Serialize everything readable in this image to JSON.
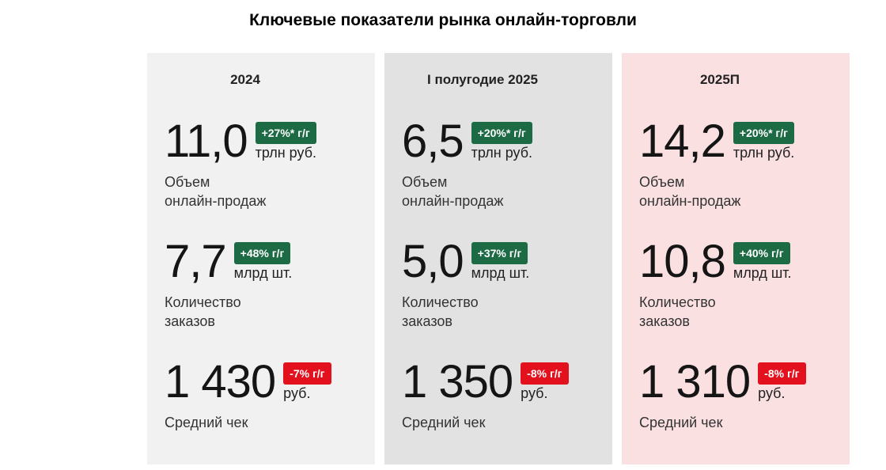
{
  "title": "Ключевые показатели рынка онлайн-торговли",
  "columns": [
    {
      "period": "2024",
      "background": "#f0f1f0",
      "metrics": [
        {
          "value": "11,0",
          "badge": "+27%* г/г",
          "badge_color": "#1d6b45",
          "unit": "трлн руб.",
          "label": "Объем\nонлайн-продаж"
        },
        {
          "value": "7,7",
          "badge": "+48% г/г",
          "badge_color": "#1d6b45",
          "unit": "млрд шт.",
          "label": "Количество\nзаказов"
        },
        {
          "value": "1 430",
          "badge": "-7% г/г",
          "badge_color": "#e3101e",
          "unit": "руб.",
          "label": "Средний чек"
        }
      ]
    },
    {
      "period": "I полугодие 2025",
      "background": "#e2e2e2",
      "metrics": [
        {
          "value": "6,5",
          "badge": "+20%* г/г",
          "badge_color": "#1d6b45",
          "unit": "трлн руб.",
          "label": "Объем\nонлайн-продаж"
        },
        {
          "value": "5,0",
          "badge": "+37% г/г",
          "badge_color": "#1d6b45",
          "unit": "млрд шт.",
          "label": "Количество\nзаказов"
        },
        {
          "value": "1 350",
          "badge": "-8% г/г",
          "badge_color": "#e3101e",
          "unit": "руб.",
          "label": "Средний чек"
        }
      ]
    },
    {
      "period": "2025П",
      "background": "#fbe0e2",
      "metrics": [
        {
          "value": "14,2",
          "badge": "+20%* г/г",
          "badge_color": "#1d6b45",
          "unit": "трлн руб.",
          "label": "Объем\nонлайн-продаж"
        },
        {
          "value": "10,8",
          "badge": "+40% г/г",
          "badge_color": "#1d6b45",
          "unit": "млрд шт.",
          "label": "Количество\nзаказов"
        },
        {
          "value": "1 310",
          "badge": "-8% г/г",
          "badge_color": "#e3101e",
          "unit": "руб.",
          "label": "Средний чек"
        }
      ]
    }
  ]
}
